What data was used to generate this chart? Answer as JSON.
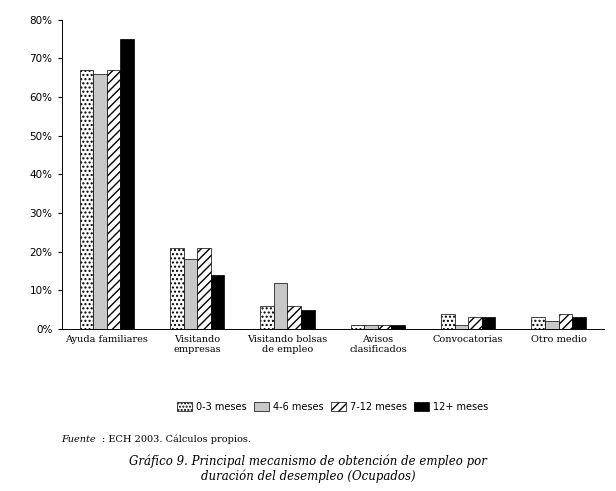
{
  "categories": [
    "Ayuda familiares",
    "Visitando\nempresas",
    "Visitando bolsas\nde empleo",
    "Avisos\nclasificados",
    "Convocatorias",
    "Otro medio"
  ],
  "series": {
    "0-3 meses": [
      67,
      21,
      6,
      1,
      4,
      3
    ],
    "4-6 meses": [
      66,
      18,
      12,
      1,
      1,
      2
    ],
    "7-12 meses": [
      67,
      21,
      6,
      1,
      3,
      4
    ],
    "12+ meses": [
      75,
      14,
      5,
      1,
      3,
      3
    ]
  },
  "series_order": [
    "0-3 meses",
    "4-6 meses",
    "7-12 meses",
    "12+ meses"
  ],
  "ylim": [
    0,
    80
  ],
  "yticks": [
    0,
    10,
    20,
    30,
    40,
    50,
    60,
    70,
    80
  ],
  "title_line1": "Gráfico 9. Principal mecanismo de obtención de empleo por",
  "title_line2": "duración del desempleo (Ocupados)",
  "footnote_italic": "Fuente",
  "footnote_normal": ": ECH 2003. Cálculos propios.",
  "background_color": "#ffffff",
  "bar_hatches": [
    "....",
    null,
    "////",
    "||||"
  ],
  "bar_facecolors": [
    "white",
    "#c8c8c8",
    "white",
    "black"
  ],
  "bar_edgecolors": [
    "#555555",
    "#555555",
    "#555555",
    "#555555"
  ],
  "bar_width": 0.15
}
